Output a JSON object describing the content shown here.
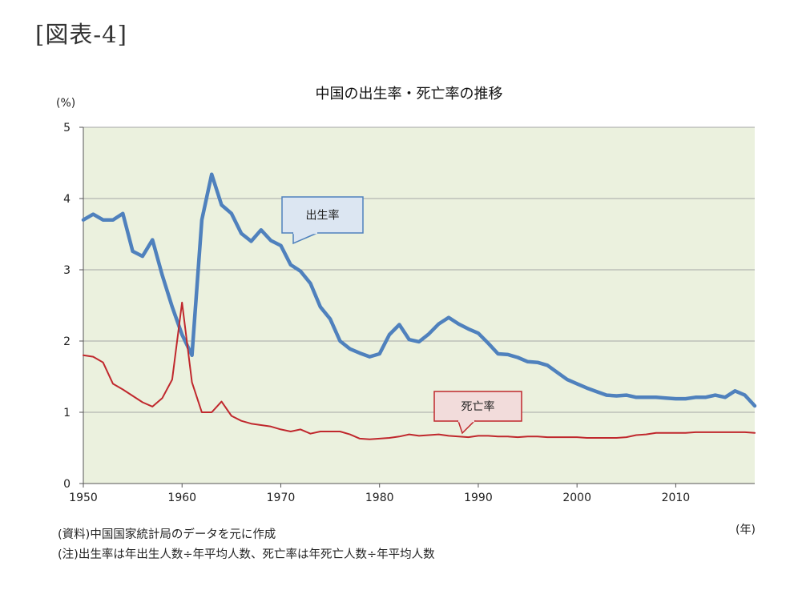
{
  "figure_label": "[図表-4]",
  "chart_data": {
    "type": "line",
    "title": "中国の出生率・死亡率の推移",
    "ylabel": "(%)",
    "xlabel": "(年)",
    "ylim": [
      0,
      5
    ],
    "xlim": [
      1950,
      2018
    ],
    "yticks": [
      "0",
      "1",
      "2",
      "3",
      "4",
      "5"
    ],
    "xticks": [
      "1950",
      "1960",
      "1970",
      "1980",
      "1990",
      "2000",
      "2010"
    ],
    "grid": true,
    "background_color": "#ebf1de",
    "series": [
      {
        "name": "出生率",
        "color": "#4f81bd",
        "x": [
          1950,
          1951,
          1952,
          1953,
          1954,
          1955,
          1956,
          1957,
          1958,
          1959,
          1960,
          1961,
          1962,
          1963,
          1964,
          1965,
          1966,
          1967,
          1968,
          1969,
          1970,
          1971,
          1972,
          1973,
          1974,
          1975,
          1976,
          1977,
          1978,
          1979,
          1980,
          1981,
          1982,
          1983,
          1984,
          1985,
          1986,
          1987,
          1988,
          1989,
          1990,
          1991,
          1992,
          1993,
          1994,
          1995,
          1996,
          1997,
          1998,
          1999,
          2000,
          2001,
          2002,
          2003,
          2004,
          2005,
          2006,
          2007,
          2008,
          2009,
          2010,
          2011,
          2012,
          2013,
          2014,
          2015,
          2016,
          2017,
          2018
        ],
        "values": [
          3.7,
          3.78,
          3.7,
          3.7,
          3.79,
          3.26,
          3.19,
          3.42,
          2.92,
          2.48,
          2.09,
          1.8,
          3.7,
          4.34,
          3.91,
          3.79,
          3.51,
          3.4,
          3.56,
          3.41,
          3.34,
          3.07,
          2.98,
          2.81,
          2.48,
          2.31,
          2.0,
          1.89,
          1.83,
          1.78,
          1.82,
          2.09,
          2.23,
          2.02,
          1.99,
          2.1,
          2.24,
          2.33,
          2.24,
          2.17,
          2.11,
          1.97,
          1.82,
          1.81,
          1.77,
          1.71,
          1.7,
          1.66,
          1.56,
          1.46,
          1.4,
          1.34,
          1.29,
          1.24,
          1.23,
          1.24,
          1.21,
          1.21,
          1.21,
          1.2,
          1.19,
          1.19,
          1.21,
          1.21,
          1.24,
          1.21,
          1.3,
          1.24,
          1.09
        ]
      },
      {
        "name": "死亡率",
        "color": "#c0282d",
        "x": [
          1950,
          1951,
          1952,
          1953,
          1954,
          1955,
          1956,
          1957,
          1958,
          1959,
          1960,
          1961,
          1962,
          1963,
          1964,
          1965,
          1966,
          1967,
          1968,
          1969,
          1970,
          1971,
          1972,
          1973,
          1974,
          1975,
          1976,
          1977,
          1978,
          1979,
          1980,
          1981,
          1982,
          1983,
          1984,
          1985,
          1986,
          1987,
          1988,
          1989,
          1990,
          1991,
          1992,
          1993,
          1994,
          1995,
          1996,
          1997,
          1998,
          1999,
          2000,
          2001,
          2002,
          2003,
          2004,
          2005,
          2006,
          2007,
          2008,
          2009,
          2010,
          2011,
          2012,
          2013,
          2014,
          2015,
          2016,
          2017,
          2018
        ],
        "values": [
          1.8,
          1.78,
          1.7,
          1.4,
          1.32,
          1.23,
          1.14,
          1.08,
          1.2,
          1.46,
          2.54,
          1.42,
          1.0,
          1.0,
          1.15,
          0.95,
          0.88,
          0.84,
          0.82,
          0.8,
          0.76,
          0.73,
          0.76,
          0.7,
          0.73,
          0.73,
          0.73,
          0.69,
          0.63,
          0.62,
          0.63,
          0.64,
          0.66,
          0.69,
          0.67,
          0.68,
          0.69,
          0.67,
          0.66,
          0.65,
          0.67,
          0.67,
          0.66,
          0.66,
          0.65,
          0.66,
          0.66,
          0.65,
          0.65,
          0.65,
          0.65,
          0.64,
          0.64,
          0.64,
          0.64,
          0.65,
          0.68,
          0.69,
          0.71,
          0.71,
          0.71,
          0.71,
          0.72,
          0.72,
          0.72,
          0.72,
          0.72,
          0.72,
          0.71
        ]
      }
    ],
    "annotations": [
      {
        "text": "出生率",
        "series": "出生率"
      },
      {
        "text": "死亡率",
        "series": "死亡率"
      }
    ]
  },
  "notes": {
    "source": "(資料)中国国家統計局のデータを元に作成",
    "note": "(注)出生率は年出生人数÷年平均人数、死亡率は年死亡人数÷年平均人数"
  }
}
